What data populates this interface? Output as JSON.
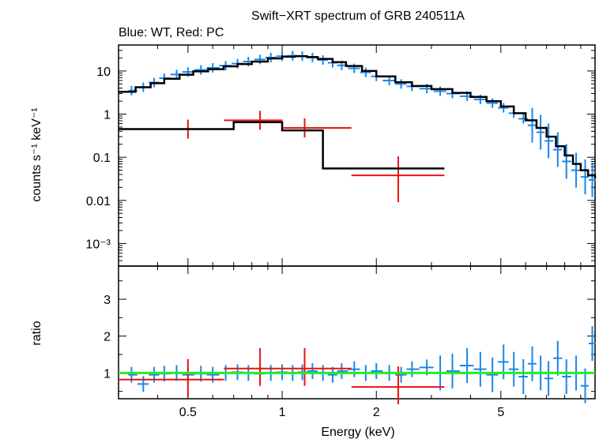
{
  "chart_data": {
    "type": "scatter",
    "title": "Swift−XRT spectrum of GRB 240511A",
    "subtitle": "Blue: WT, Red: PC",
    "xlabel": "Energy (keV)",
    "x_scale": "log",
    "xlim": [
      0.3,
      10
    ],
    "x_ticks": [
      {
        "value": 0.5,
        "label": "0.5"
      },
      {
        "value": 1,
        "label": "1"
      },
      {
        "value": 2,
        "label": "2"
      },
      {
        "value": 5,
        "label": "5"
      }
    ],
    "colors": {
      "wt": "#1a87ea",
      "pc": "#ee1111",
      "model": "#000000",
      "unity": "#22ee22"
    },
    "panels": [
      {
        "name": "spectrum",
        "ylabel": "counts s⁻¹ keV⁻¹",
        "y_scale": "log",
        "ylim": [
          0.0003,
          40
        ],
        "y_ticks": [
          {
            "value": 10,
            "label": "10"
          },
          {
            "value": 1,
            "label": "1"
          },
          {
            "value": 0.1,
            "label": "0.1"
          },
          {
            "value": 0.01,
            "label": "0.01"
          },
          {
            "value": 0.001,
            "label": "10⁻³"
          }
        ],
        "series": [
          {
            "key": "wt",
            "points": [
              [
                0.33,
                3.5
              ],
              [
                0.36,
                4.2
              ],
              [
                0.39,
                5.4
              ],
              [
                0.42,
                6.8
              ],
              [
                0.46,
                8.3
              ],
              [
                0.5,
                9.5
              ],
              [
                0.55,
                10.6
              ],
              [
                0.6,
                11.8
              ],
              [
                0.66,
                13.2
              ],
              [
                0.72,
                14.8
              ],
              [
                0.78,
                16.5
              ],
              [
                0.85,
                18.5
              ],
              [
                0.92,
                20.5
              ],
              [
                1.0,
                22
              ],
              [
                1.08,
                22.5
              ],
              [
                1.16,
                22
              ],
              [
                1.25,
                20.5
              ],
              [
                1.35,
                18
              ],
              [
                1.45,
                15.5
              ],
              [
                1.55,
                13.5
              ],
              [
                1.7,
                11.5
              ],
              [
                1.85,
                9.3
              ],
              [
                2.0,
                7.5
              ],
              [
                2.2,
                6.0
              ],
              [
                2.4,
                5.0
              ],
              [
                2.6,
                4.4
              ],
              [
                2.9,
                3.9
              ],
              [
                3.2,
                3.4
              ],
              [
                3.5,
                3.0
              ],
              [
                3.9,
                2.6
              ],
              [
                4.3,
                2.2
              ],
              [
                4.7,
                1.8
              ],
              [
                5.1,
                1.4
              ],
              [
                5.5,
                1.05
              ],
              [
                5.9,
                0.78
              ],
              [
                6.3,
                0.55
              ],
              [
                6.7,
                0.38
              ],
              [
                7.1,
                0.24
              ],
              [
                7.6,
                0.15
              ],
              [
                8.1,
                0.08
              ],
              [
                8.7,
                0.05
              ],
              [
                9.3,
                0.035
              ],
              [
                9.8,
                0.03
              ]
            ]
          },
          {
            "key": "pc",
            "points": [
              [
                0.5,
                0.45
              ],
              [
                0.85,
                0.72
              ],
              [
                1.18,
                0.48
              ],
              [
                2.35,
                0.038
              ]
            ]
          },
          {
            "key": "model",
            "points": [
              [
                0.3,
                3.3
              ],
              [
                0.34,
                4.2
              ],
              [
                0.38,
                5.2
              ],
              [
                0.42,
                6.6
              ],
              [
                0.47,
                8.2
              ],
              [
                0.52,
                9.8
              ],
              [
                0.58,
                11.0
              ],
              [
                0.65,
                12.8
              ],
              [
                0.72,
                14.5
              ],
              [
                0.8,
                16.5
              ],
              [
                0.9,
                19.5
              ],
              [
                1.0,
                21.5
              ],
              [
                1.1,
                22
              ],
              [
                1.2,
                21
              ],
              [
                1.3,
                19
              ],
              [
                1.45,
                16
              ],
              [
                1.6,
                13
              ],
              [
                1.8,
                10
              ],
              [
                2.0,
                7.5
              ],
              [
                2.3,
                5.5
              ],
              [
                2.6,
                4.5
              ],
              [
                3.0,
                3.8
              ],
              [
                3.5,
                3.1
              ],
              [
                4.0,
                2.5
              ],
              [
                4.5,
                2.0
              ],
              [
                5.0,
                1.5
              ],
              [
                5.5,
                1.05
              ],
              [
                6.0,
                0.72
              ],
              [
                6.5,
                0.48
              ],
              [
                7.0,
                0.3
              ],
              [
                7.5,
                0.18
              ],
              [
                8.0,
                0.11
              ],
              [
                8.5,
                0.07
              ],
              [
                9.0,
                0.05
              ],
              [
                9.5,
                0.038
              ],
              [
                10.0,
                0.033
              ]
            ]
          },
          {
            "key": "model_pc",
            "points": [
              [
                0.3,
                0.45
              ],
              [
                0.7,
                0.45
              ],
              [
                0.7,
                0.65
              ],
              [
                1.0,
                0.65
              ],
              [
                1.0,
                0.42
              ],
              [
                1.35,
                0.42
              ],
              [
                1.35,
                0.055
              ],
              [
                3.3,
                0.055
              ]
            ]
          }
        ]
      },
      {
        "name": "ratio",
        "ylabel": "ratio",
        "y_scale": "linear",
        "ylim": [
          0.3,
          3.9
        ],
        "y_ticks": [
          {
            "value": 1,
            "label": "1"
          },
          {
            "value": 2,
            "label": "2"
          },
          {
            "value": 3,
            "label": "3"
          }
        ],
        "series": [
          {
            "key": "wt",
            "points": [
              [
                0.33,
                0.95
              ],
              [
                0.36,
                0.7
              ],
              [
                0.39,
                0.95
              ],
              [
                0.42,
                0.98
              ],
              [
                0.46,
                1.0
              ],
              [
                0.5,
                0.95
              ],
              [
                0.55,
                0.98
              ],
              [
                0.6,
                0.95
              ],
              [
                0.66,
                1.0
              ],
              [
                0.72,
                1.02
              ],
              [
                0.78,
                1.0
              ],
              [
                0.85,
                0.98
              ],
              [
                0.92,
                1.0
              ],
              [
                1.0,
                1.02
              ],
              [
                1.08,
                1.0
              ],
              [
                1.16,
                1.02
              ],
              [
                1.25,
                1.05
              ],
              [
                1.35,
                1.0
              ],
              [
                1.45,
                0.95
              ],
              [
                1.55,
                1.05
              ],
              [
                1.7,
                1.1
              ],
              [
                1.85,
                1.0
              ],
              [
                2.0,
                1.05
              ],
              [
                2.2,
                1.0
              ],
              [
                2.4,
                0.95
              ],
              [
                2.6,
                1.1
              ],
              [
                2.9,
                1.15
              ],
              [
                3.2,
                1.0
              ],
              [
                3.5,
                1.05
              ],
              [
                3.9,
                1.2
              ],
              [
                4.3,
                1.1
              ],
              [
                4.7,
                0.95
              ],
              [
                5.1,
                1.3
              ],
              [
                5.5,
                1.1
              ],
              [
                5.9,
                0.9
              ],
              [
                6.3,
                1.25
              ],
              [
                6.7,
                1.0
              ],
              [
                7.1,
                0.85
              ],
              [
                7.6,
                1.4
              ],
              [
                8.1,
                0.9
              ],
              [
                8.7,
                1.0
              ],
              [
                9.3,
                0.65
              ],
              [
                9.8,
                1.8
              ]
            ]
          },
          {
            "key": "pc",
            "points": [
              [
                0.5,
                0.82
              ],
              [
                0.85,
                1.12
              ],
              [
                1.18,
                1.12
              ],
              [
                2.35,
                0.62
              ]
            ]
          },
          {
            "key": "unity",
            "points": [
              [
                0.3,
                1.0
              ],
              [
                10.0,
                1.0
              ]
            ]
          }
        ]
      }
    ]
  }
}
